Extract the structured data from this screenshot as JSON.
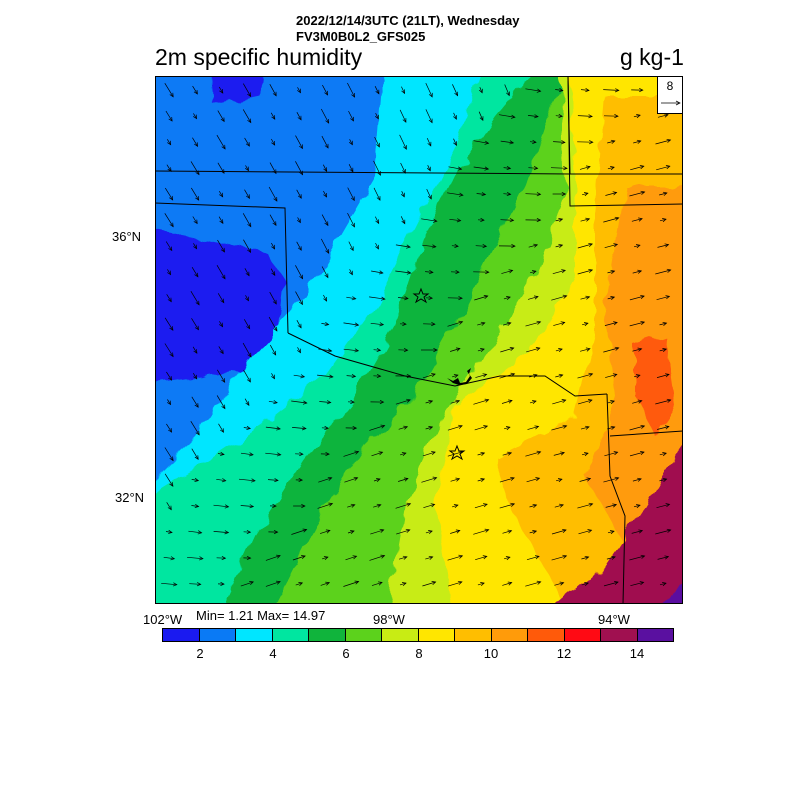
{
  "header": {
    "datetime": "2022/12/14/3UTC (21LT), Wednesday",
    "model": "FV3M0B0L2_GFS025",
    "title": "2m specific humidity",
    "units": "g kg-1"
  },
  "map": {
    "lat_labels": [
      "36°N",
      "32°N"
    ],
    "lon_labels": [
      "102°W",
      "98°W",
      "94°W"
    ],
    "reference_vector": "8",
    "stats": "Min= 1.21 Max= 14.97"
  },
  "colorbar": {
    "colors": [
      "#1a1af0",
      "#0a7af5",
      "#00e6ff",
      "#00e6a0",
      "#10b43c",
      "#5cd21c",
      "#c8ec14",
      "#ffe600",
      "#ffbe00",
      "#ff9b0a",
      "#ff5a0a",
      "#ff0a14",
      "#a01050",
      "#5a10a0"
    ],
    "tick_labels": [
      "2",
      "4",
      "6",
      "8",
      "10",
      "12",
      "14"
    ]
  }
}
